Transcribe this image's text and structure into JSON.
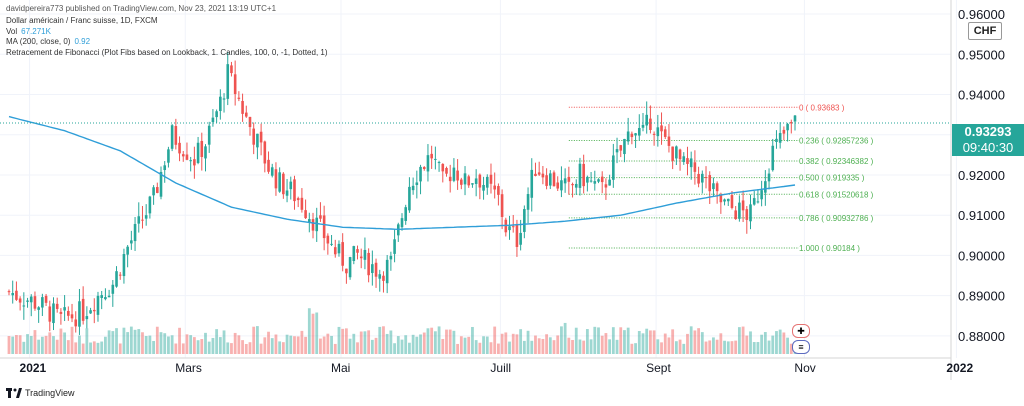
{
  "header": {
    "published": "davidpereira773 published on TradingView.com, Nov 23, 2021 13:19 UTC+1"
  },
  "legend": {
    "symbol": "Dollar américain / Franc suisse, 1D, FXCM",
    "vol_label": "Vol",
    "vol_value": "67.271K",
    "ma_label": "MA (200, close, 0)",
    "ma_value": "0.92",
    "fib_label": "Retracement de Fibonacci (Plot Fibs based on Lookback, 1. Candles, 100, 0, -1, Dotted, 1)"
  },
  "currency_badge": "CHF",
  "last_price": "0.93293",
  "countdown": "09:40:30",
  "footer": {
    "brand": "TradingView"
  },
  "colors": {
    "up": "#26a69a",
    "down": "#ef5350",
    "ma": "#2f9ed8",
    "fib_zero": "#ef5350",
    "fib_levels": "#4caf50",
    "fib_one": "#4caf50"
  },
  "chart_data": {
    "type": "candlestick",
    "y_axis_labels": [
      "0.96000",
      "0.95000",
      "0.94000",
      "0.93000",
      "0.92000",
      "0.91000",
      "0.90000",
      "0.89000",
      "0.88000"
    ],
    "y_axis_values": [
      0.96,
      0.95,
      0.94,
      0.93,
      0.92,
      0.91,
      0.9,
      0.89,
      0.88
    ],
    "x_axis_labels": [
      "2021",
      "Mars",
      "Mai",
      "Juill",
      "Sept",
      "Nov",
      "2022"
    ],
    "ylim": [
      0.8755,
      0.9625
    ],
    "fib_levels": [
      {
        "ratio": "0",
        "price": "0.93683",
        "value": 0.93683
      },
      {
        "ratio": "0.236",
        "price": "0.92857236",
        "value": 0.92857236
      },
      {
        "ratio": "0.382",
        "price": "0.92346382",
        "value": 0.92346382
      },
      {
        "ratio": "0.500",
        "price": "0.919335",
        "value": 0.919335
      },
      {
        "ratio": "0.618",
        "price": "0.91520618",
        "value": 0.91520618
      },
      {
        "ratio": "0.786",
        "price": "0.90932786",
        "value": 0.90932786
      },
      {
        "ratio": "1.000",
        "price": "0.90184",
        "value": 0.90184
      }
    ],
    "close_path": [
      [
        0,
        0.891
      ],
      [
        8,
        0.888
      ],
      [
        14,
        0.884
      ],
      [
        20,
        0.886
      ],
      [
        25,
        0.891
      ],
      [
        28,
        0.893
      ],
      [
        32,
        0.902
      ],
      [
        36,
        0.909
      ],
      [
        39,
        0.914
      ],
      [
        42,
        0.924
      ],
      [
        44,
        0.93
      ],
      [
        47,
        0.927
      ],
      [
        50,
        0.924
      ],
      [
        53,
        0.928
      ],
      [
        55,
        0.933
      ],
      [
        57,
        0.938
      ],
      [
        59,
        0.945
      ],
      [
        61,
        0.941
      ],
      [
        64,
        0.934
      ],
      [
        67,
        0.928
      ],
      [
        70,
        0.922
      ],
      [
        73,
        0.918
      ],
      [
        76,
        0.916
      ],
      [
        79,
        0.913
      ],
      [
        82,
        0.909
      ],
      [
        85,
        0.905
      ],
      [
        88,
        0.901
      ],
      [
        91,
        0.898
      ],
      [
        94,
        0.9
      ],
      [
        97,
        0.898
      ],
      [
        100,
        0.896
      ],
      [
        103,
        0.898
      ],
      [
        105,
        0.906
      ],
      [
        108,
        0.918
      ],
      [
        111,
        0.922
      ],
      [
        114,
        0.925
      ],
      [
        117,
        0.918
      ],
      [
        120,
        0.922
      ],
      [
        123,
        0.918
      ],
      [
        126,
        0.92
      ],
      [
        129,
        0.917
      ],
      [
        132,
        0.914
      ],
      [
        134,
        0.907
      ],
      [
        137,
        0.904
      ],
      [
        139,
        0.912
      ],
      [
        142,
        0.922
      ],
      [
        145,
        0.92
      ],
      [
        148,
        0.918
      ],
      [
        151,
        0.916
      ],
      [
        154,
        0.92
      ],
      [
        157,
        0.918
      ],
      [
        160,
        0.916
      ],
      [
        162,
        0.921
      ],
      [
        165,
        0.926
      ],
      [
        168,
        0.932
      ],
      [
        171,
        0.93
      ],
      [
        173,
        0.934
      ],
      [
        176,
        0.929
      ],
      [
        179,
        0.926
      ],
      [
        182,
        0.922
      ],
      [
        185,
        0.921
      ],
      [
        188,
        0.918
      ],
      [
        191,
        0.914
      ],
      [
        194,
        0.912
      ],
      [
        197,
        0.911
      ],
      [
        200,
        0.91
      ],
      [
        203,
        0.918
      ],
      [
        206,
        0.926
      ],
      [
        209,
        0.93
      ],
      [
        212,
        0.933
      ]
    ],
    "ma_path": [
      [
        0,
        0.9345
      ],
      [
        15,
        0.931
      ],
      [
        30,
        0.926
      ],
      [
        45,
        0.918
      ],
      [
        60,
        0.912
      ],
      [
        75,
        0.909
      ],
      [
        90,
        0.907
      ],
      [
        105,
        0.9065
      ],
      [
        120,
        0.907
      ],
      [
        135,
        0.9075
      ],
      [
        150,
        0.9085
      ],
      [
        165,
        0.91
      ],
      [
        180,
        0.913
      ],
      [
        195,
        0.9155
      ],
      [
        212,
        0.9175
      ]
    ]
  }
}
